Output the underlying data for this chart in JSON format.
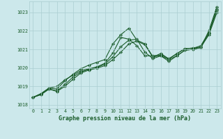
{
  "bg_color": "#cce8eb",
  "grid_color": "#aacdd1",
  "line_color": "#1a5c2a",
  "title": "Graphe pression niveau de la mer (hPa)",
  "xlim": [
    -0.5,
    23.5
  ],
  "ylim": [
    1017.8,
    1023.6
  ],
  "yticks": [
    1018,
    1019,
    1020,
    1021,
    1022,
    1023
  ],
  "xticks": [
    0,
    1,
    2,
    3,
    4,
    5,
    6,
    7,
    8,
    9,
    10,
    11,
    12,
    13,
    14,
    15,
    16,
    17,
    18,
    19,
    20,
    21,
    22,
    23
  ],
  "series": [
    [
      1018.4,
      1018.6,
      1018.9,
      1018.85,
      1019.3,
      1019.65,
      1019.95,
      1020.15,
      1020.3,
      1020.45,
      1021.3,
      1021.8,
      1022.15,
      1021.5,
      1021.3,
      1020.6,
      1020.65,
      1020.45,
      1020.65,
      1020.95,
      1021.0,
      1021.1,
      1022.0,
      1023.3
    ],
    [
      1018.4,
      1018.6,
      1018.9,
      1019.0,
      1019.35,
      1019.6,
      1019.85,
      1019.95,
      1020.05,
      1020.25,
      1020.8,
      1021.65,
      1021.55,
      1021.2,
      1020.65,
      1020.65,
      1020.7,
      1020.5,
      1020.75,
      1021.05,
      1021.05,
      1021.2,
      1021.9,
      1023.2
    ],
    [
      1018.4,
      1018.55,
      1018.85,
      1018.75,
      1019.1,
      1019.5,
      1019.78,
      1019.92,
      1020.02,
      1020.2,
      1020.6,
      1021.15,
      1021.5,
      1021.55,
      1020.85,
      1020.5,
      1020.65,
      1020.35,
      1020.65,
      1020.95,
      1021.0,
      1021.1,
      1021.85,
      1023.1
    ],
    [
      1018.4,
      1018.55,
      1018.85,
      1018.72,
      1019.0,
      1019.38,
      1019.72,
      1019.88,
      1019.98,
      1020.12,
      1020.45,
      1020.85,
      1021.3,
      1021.45,
      1021.25,
      1020.58,
      1020.78,
      1020.48,
      1020.78,
      1021.02,
      1021.08,
      1021.12,
      1021.78,
      1022.98
    ]
  ]
}
